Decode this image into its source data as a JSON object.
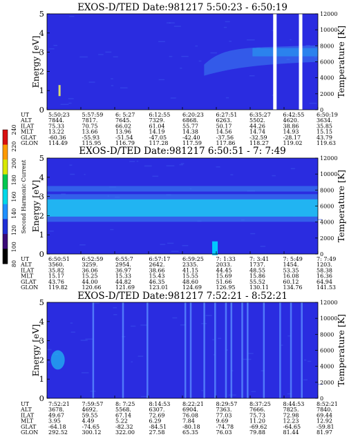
{
  "colors": {
    "background": "#2a2ce0",
    "band_core": "#21b4f2",
    "band_mid": "#3a82f0",
    "streak": "#5a8cff",
    "colorbar": [
      "#000000",
      "#3a0a78",
      "#1f2fd6",
      "#1e90ff",
      "#00d8e8",
      "#00c850",
      "#d8e800",
      "#ff9a00",
      "#d81010"
    ]
  },
  "colorbar": {
    "label": "Second Harmonic Current",
    "ticks": [
      "80",
      "100",
      "120",
      "140",
      "160",
      "180",
      "200",
      "220",
      "240"
    ]
  },
  "chart_data": [
    {
      "type": "heatmap",
      "title": "EXOS-D/TED   Date:981217  5:50:23 - 6:50:19",
      "ylabel": "Energy [eV]",
      "y2label": "Temperature [K]",
      "ylim": [
        0,
        5
      ],
      "y2lim": [
        0,
        12000
      ],
      "yticks": [
        "0",
        "1",
        "2",
        "3",
        "4",
        "5"
      ],
      "y2ticks": [
        "0",
        "2000",
        "4000",
        "6000",
        "8000",
        "10000",
        "12000"
      ],
      "features": {
        "band_center_eV": 3.0,
        "band_start_fraction": 0.58,
        "gaps_fraction": [
          0.84,
          0.935
        ],
        "blip": {
          "x_fraction": 0.045,
          "energy_eV": 1.0
        }
      },
      "ephemeris": {
        "labels": [
          "UT",
          "ALT",
          "ILAT",
          "MLT",
          "GLAT",
          "GLON"
        ],
        "columns": [
          {
            "UT": "5:50:23",
            "ALT": "7844.",
            "ILAT": "75.33",
            "MLT": "13.22",
            "GLAT": "-60.36",
            "GLON": "114.49"
          },
          {
            "UT": "5:57:59",
            "ALT": "7817.",
            "ILAT": "70.75",
            "MLT": "13.66",
            "GLAT": "-55.93",
            "GLON": "115.95"
          },
          {
            "UT": "6: 5:27",
            "ALT": "7645.",
            "ILAT": "66.02",
            "MLT": "13.96",
            "GLAT": "-51.54",
            "GLON": "116.79"
          },
          {
            "UT": "6:12:55",
            "ALT": "7329.",
            "ILAT": "61.04",
            "MLT": "14.19",
            "GLAT": "-47.05",
            "GLON": "117.28"
          },
          {
            "UT": "6:20:23",
            "ALT": "6868.",
            "ILAT": "55.77",
            "MLT": "14.38",
            "GLAT": "-42.40",
            "GLON": "117.59"
          },
          {
            "UT": "6:27:51",
            "ALT": "6263.",
            "ILAT": "50.17",
            "MLT": "14.56",
            "GLAT": "-37.56",
            "GLON": "117.86"
          },
          {
            "UT": "6:35:27",
            "ALT": "5502.",
            "ILAT": "44.26",
            "MLT": "14.74",
            "GLAT": "-32.59",
            "GLON": "118.27"
          },
          {
            "UT": "6:42:55",
            "ALT": "4620.",
            "ILAT": "38.86",
            "MLT": "14.93",
            "GLAT": "-28.17",
            "GLON": "119.02"
          },
          {
            "UT": "6:50:19",
            "ALT": "3634.",
            "ILAT": "35.85",
            "MLT": "15.15",
            "GLAT": "43.79",
            "GLON": "119.63"
          }
        ]
      }
    },
    {
      "type": "heatmap",
      "title": "EXOS-D/TED   Date:981217  6:50:51 - 7: 7:49",
      "ylabel": "Energy [eV]",
      "y2label": "Temperature [K]",
      "ylim": [
        0,
        5
      ],
      "y2lim": [
        0,
        12000
      ],
      "yticks": [
        "0",
        "1",
        "2",
        "3",
        "4",
        "5"
      ],
      "y2ticks": [
        "0",
        "2000",
        "4000",
        "6000",
        "8000",
        "10000",
        "12000"
      ],
      "features": {
        "band_center_eV": 2.4,
        "band_halfwidth_eV": 0.45,
        "upper_band_eV": 3.4,
        "blip": {
          "x_fraction": 0.62,
          "energy_eV": 0.3
        }
      },
      "ephemeris": {
        "labels": [
          "UT",
          "ALT",
          "ILAT",
          "MLT",
          "GLAT",
          "GLON"
        ],
        "columns": [
          {
            "UT": "6:50:51",
            "ALT": "3560.",
            "ILAT": "35.82",
            "MLT": "15.17",
            "GLAT": "43.76",
            "GLON": "119.82"
          },
          {
            "UT": "6:52:59",
            "ALT": "3259.",
            "ILAT": "36.06",
            "MLT": "15.25",
            "GLAT": "44.00",
            "GLON": "120.66"
          },
          {
            "UT": "6:55:7",
            "ALT": "2954.",
            "ILAT": "36.97",
            "MLT": "15.33",
            "GLAT": "44.82",
            "GLON": "121.69"
          },
          {
            "UT": "6:57:17",
            "ALT": "2642.",
            "ILAT": "38.66",
            "MLT": "15.43",
            "GLAT": "46.35",
            "GLON": "123.01"
          },
          {
            "UT": "6:59:25",
            "ALT": "2335.",
            "ILAT": "41.15",
            "MLT": "15.55",
            "GLAT": "48.60",
            "GLON": "124.69"
          },
          {
            "UT": "7: 1:33",
            "ALT": "2033.",
            "ILAT": "44.45",
            "MLT": "15.69",
            "GLAT": "51.66",
            "GLON": "126.95"
          },
          {
            "UT": "7: 3:41",
            "ALT": "1737.",
            "ILAT": "48.55",
            "MLT": "15.86",
            "GLAT": "55.52",
            "GLON": "130.11"
          },
          {
            "UT": "7: 5:49",
            "ALT": "1454.",
            "ILAT": "53.35",
            "MLT": "16.08",
            "GLAT": "60.12",
            "GLON": "134.76"
          },
          {
            "UT": "7: 7:49",
            "ALT": "1203.",
            "ILAT": "58.38",
            "MLT": "16.36",
            "GLAT": "64.94",
            "GLON": "141.53"
          }
        ]
      }
    },
    {
      "type": "heatmap",
      "title": "EXOS-D/TED   Date:981217  7:52:21 - 8:52:21",
      "ylabel": "Energy [eV]",
      "y2label": "Temperature [K]",
      "ylim": [
        0,
        5
      ],
      "y2lim": [
        0,
        12000
      ],
      "yticks": [
        "0",
        "1",
        "2",
        "3",
        "4",
        "5"
      ],
      "y2ticks": [
        "0",
        "2000",
        "4000",
        "6000",
        "8000",
        "10000",
        "12000"
      ],
      "features": {
        "blob": {
          "x_fraction": 0.04,
          "energy_eV": 2.0
        },
        "streaks_fraction": [
          0.17,
          0.28,
          0.37,
          0.51,
          0.53,
          0.58,
          0.62,
          0.66,
          0.68,
          0.72,
          0.74,
          0.8,
          0.86,
          0.9,
          0.94
        ]
      },
      "ephemeris": {
        "labels": [
          "UT",
          "ALT",
          "ILAT",
          "MLT",
          "GLAT",
          "GLON"
        ],
        "columns": [
          {
            "UT": "7:52:21",
            "ALT": "3678.",
            "ILAT": "49.67",
            "MLT": "3.95",
            "GLAT": "-64.18",
            "GLON": "292.52"
          },
          {
            "UT": "7:59:57",
            "ALT": "4692.",
            "ILAT": "59.55",
            "MLT": "4.49",
            "GLAT": "-74.65",
            "GLON": "300.12"
          },
          {
            "UT": "8: 7:25",
            "ALT": "5568.",
            "ILAT": "67.14",
            "MLT": "5.22",
            "GLAT": "-82.32",
            "GLON": "322.00"
          },
          {
            "UT": "8:14:53",
            "ALT": "6307.",
            "ILAT": "72.69",
            "MLT": "6.29",
            "GLAT": "-84.51",
            "GLON": "27.58"
          },
          {
            "UT": "8:22:21",
            "ALT": "6904.",
            "ILAT": "76.08",
            "MLT": "7.84",
            "GLAT": "-80.18",
            "GLON": "65.35"
          },
          {
            "UT": "8:29:57",
            "ALT": "7363.",
            "ILAT": "77.03",
            "MLT": "9.69",
            "GLAT": "-74.78",
            "GLON": "76.03"
          },
          {
            "UT": "8:37:25",
            "ALT": "7666.",
            "ILAT": "75.73",
            "MLT": "11.20",
            "GLAT": "-69.62",
            "GLON": "79.88"
          },
          {
            "UT": "8:44:53",
            "ALT": "7825.",
            "ILAT": "72.98",
            "MLT": "12.23",
            "GLAT": "-64.65",
            "GLON": "81.44"
          },
          {
            "UT": "8:52:21",
            "ALT": "7840.",
            "ILAT": "69.44",
            "MLT": "12.92",
            "GLAT": "-59.81",
            "GLON": "81.97"
          }
        ]
      }
    }
  ]
}
